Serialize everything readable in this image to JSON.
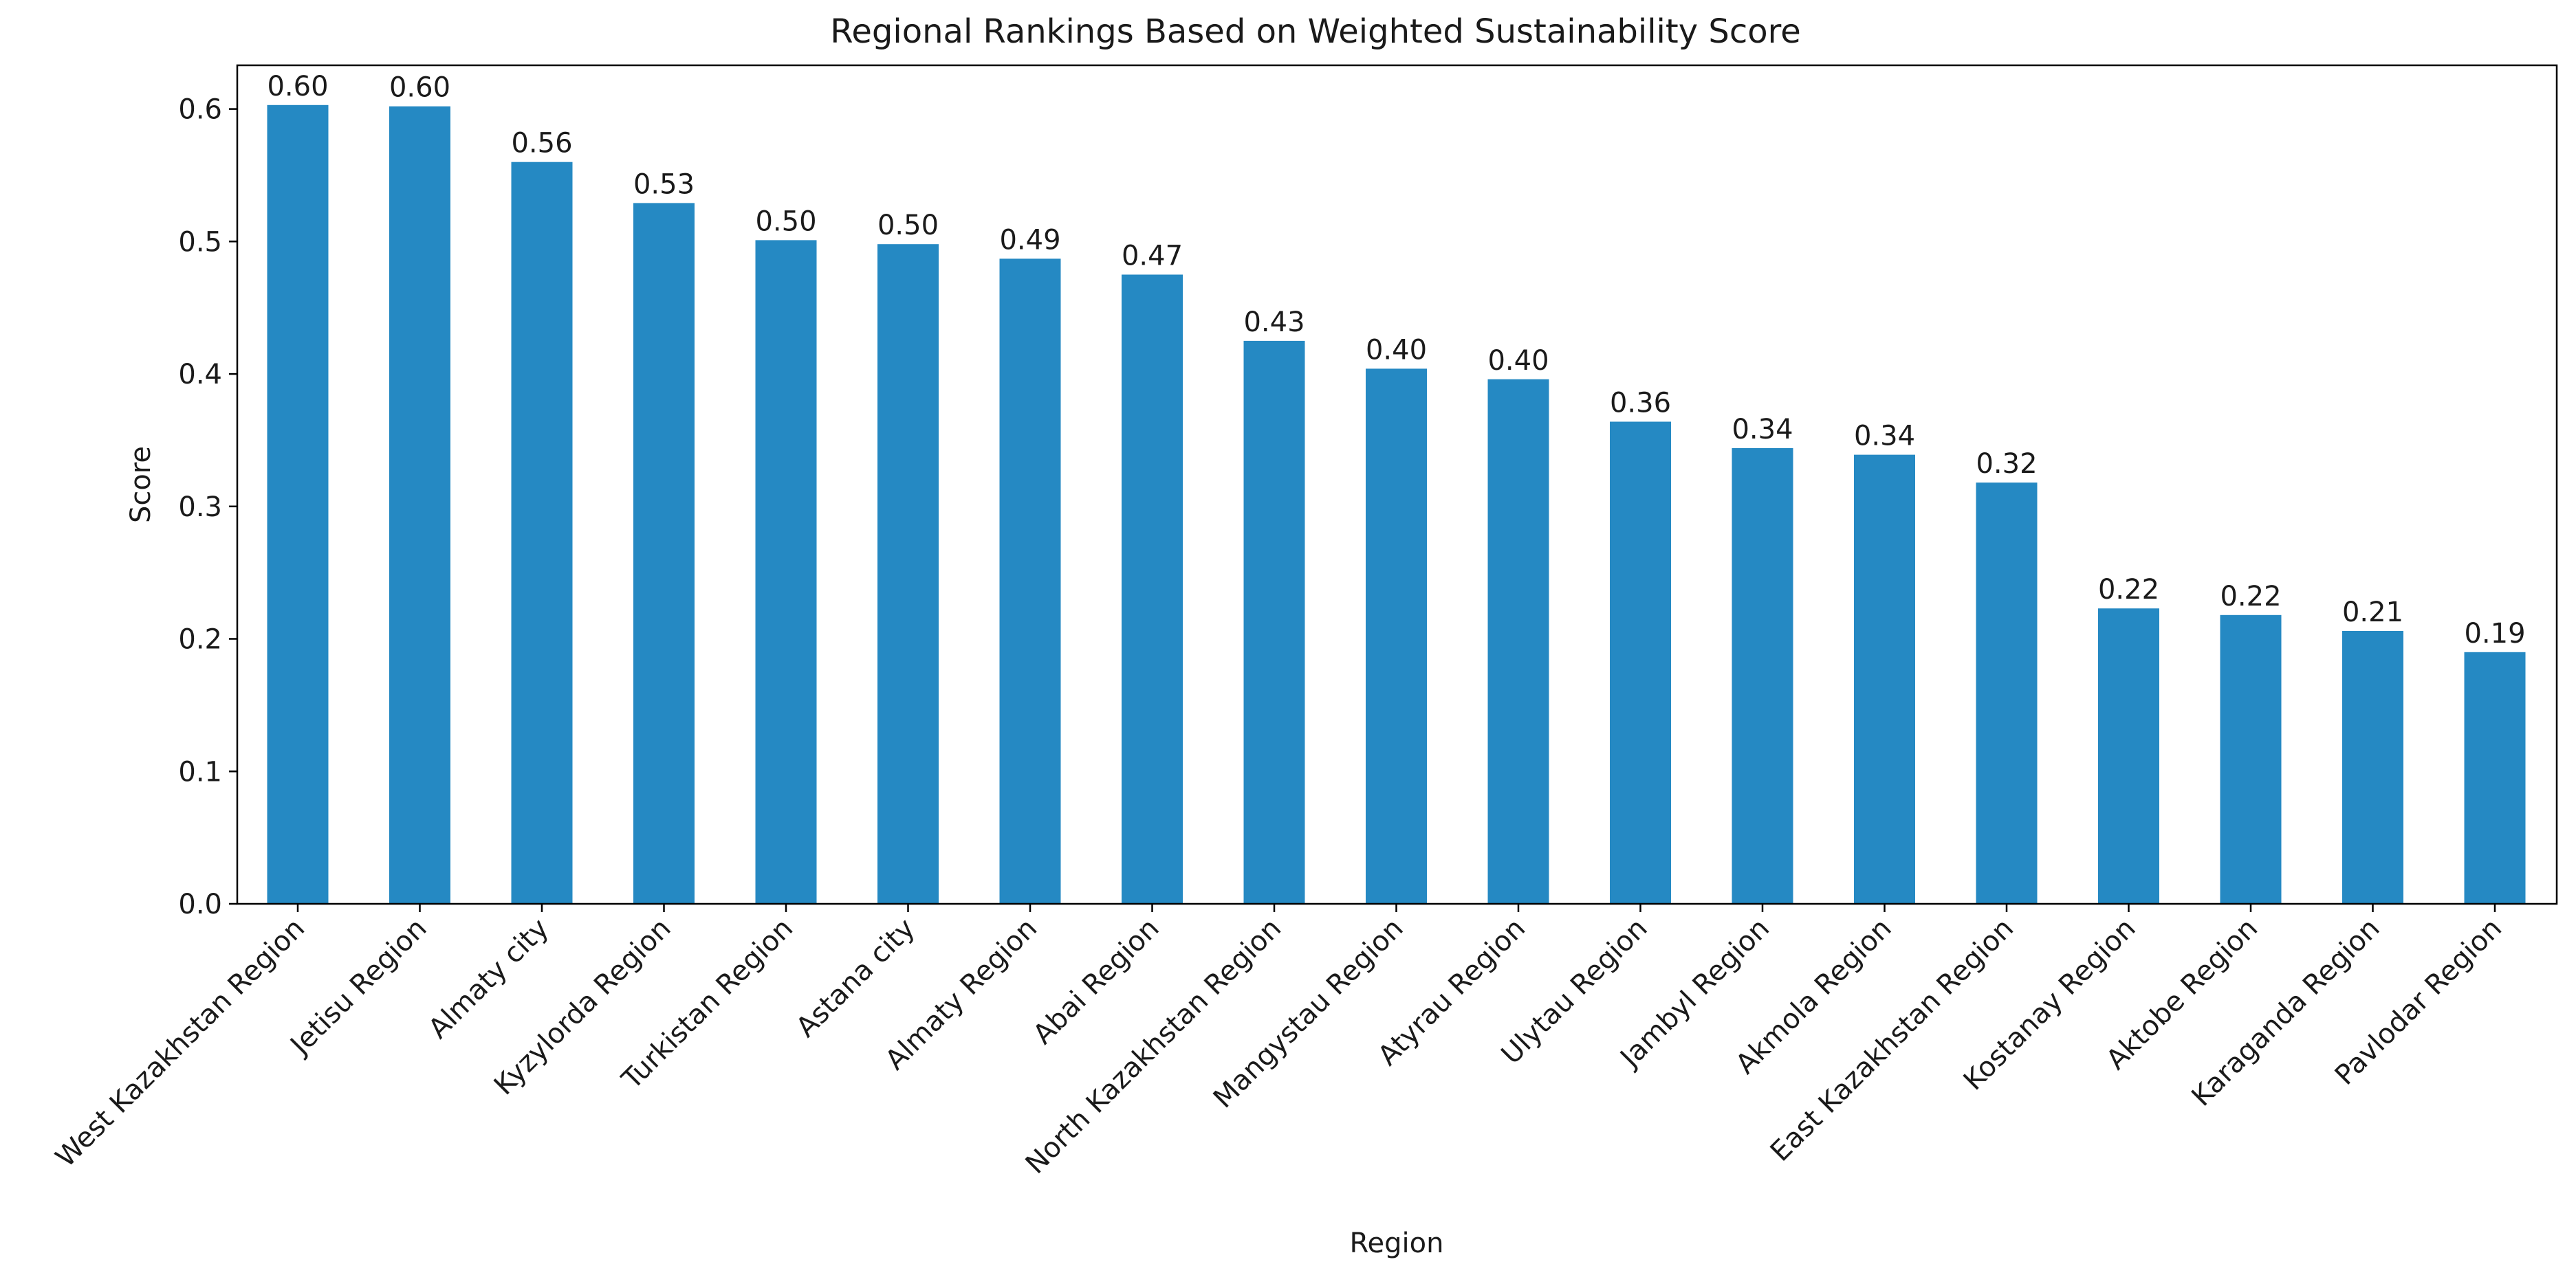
{
  "chart_data": {
    "type": "bar",
    "title": "Regional Rankings Based on Weighted Sustainability Score",
    "xlabel": "Region",
    "ylabel": "Score",
    "ylim": [
      0,
      0.633
    ],
    "yticks": [
      0.0,
      0.1,
      0.2,
      0.3,
      0.4,
      0.5,
      0.6
    ],
    "ytick_labels": [
      "0.0",
      "0.1",
      "0.2",
      "0.3",
      "0.4",
      "0.5",
      "0.6"
    ],
    "grid": false,
    "bar_color": "#2589c3",
    "categories": [
      "West Kazakhstan Region",
      "Jetisu Region",
      "Almaty city",
      "Kyzylorda Region",
      "Turkistan Region",
      "Astana city",
      "Almaty Region",
      "Abai Region",
      "North Kazakhstan Region",
      "Mangystau Region",
      "Atyrau Region",
      "Ulytau Region",
      "Jambyl Region",
      "Akmola Region",
      "East Kazakhstan Region",
      "Kostanay Region",
      "Aktobe Region",
      "Karaganda Region",
      "Pavlodar Region"
    ],
    "values": [
      0.603,
      0.602,
      0.56,
      0.529,
      0.501,
      0.498,
      0.487,
      0.475,
      0.425,
      0.404,
      0.396,
      0.364,
      0.344,
      0.339,
      0.318,
      0.223,
      0.218,
      0.206,
      0.19
    ],
    "value_labels": [
      "0.60",
      "0.60",
      "0.56",
      "0.53",
      "0.50",
      "0.50",
      "0.49",
      "0.47",
      "0.43",
      "0.40",
      "0.40",
      "0.36",
      "0.34",
      "0.34",
      "0.32",
      "0.22",
      "0.22",
      "0.21",
      "0.19"
    ]
  }
}
